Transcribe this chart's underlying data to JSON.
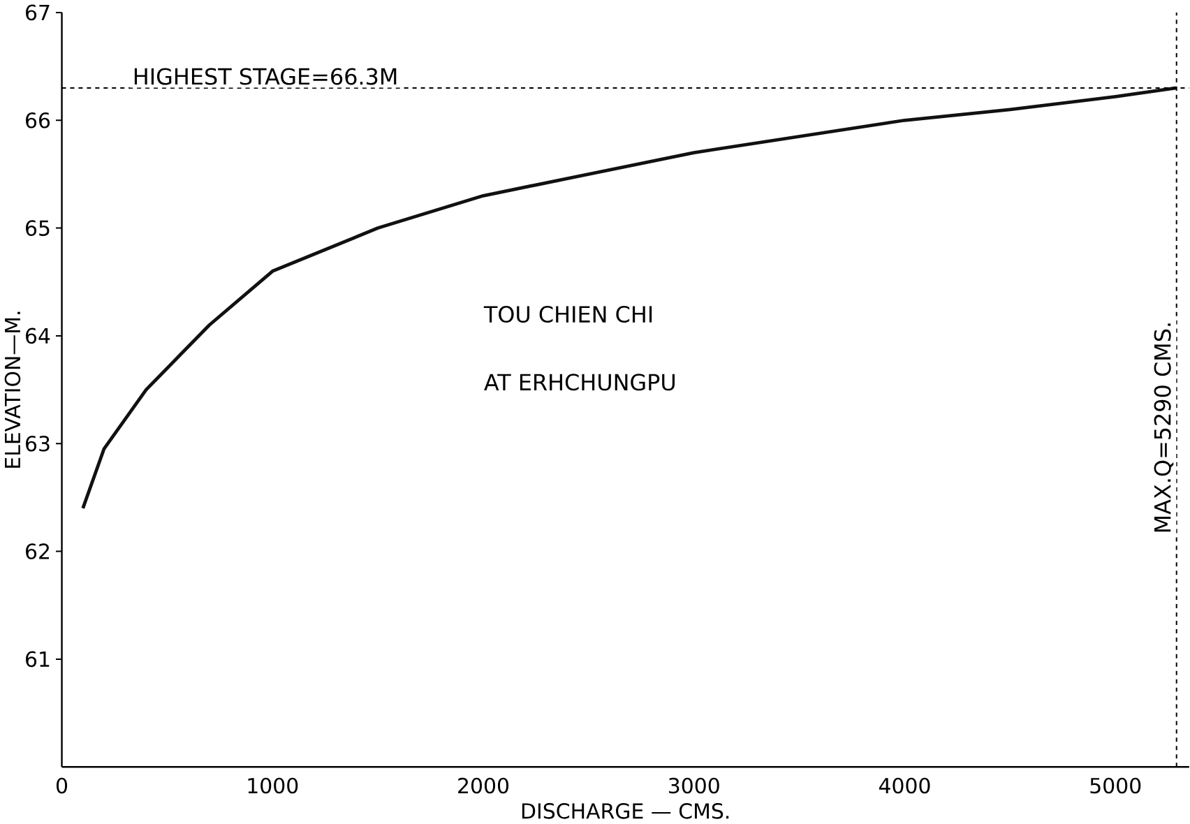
{
  "chart_data": {
    "type": "line",
    "xlabel": "DISCHARGE — CMS.",
    "ylabel": "ELEVATION—M.",
    "x": [
      100,
      200,
      400,
      700,
      1000,
      1500,
      2000,
      2500,
      3000,
      3500,
      4000,
      4500,
      5000,
      5290
    ],
    "series": [
      {
        "color": "#111111",
        "values": [
          62.4,
          62.95,
          63.5,
          64.1,
          64.6,
          65.0,
          65.3,
          65.5,
          65.7,
          65.85,
          66.0,
          66.1,
          66.22,
          66.3
        ]
      }
    ],
    "xlim": [
      0,
      5350
    ],
    "ylim": [
      60,
      67
    ],
    "xticks": [
      0,
      1000,
      2000,
      3000,
      4000,
      5000
    ],
    "yticks": [
      61,
      62,
      63,
      64,
      65,
      66,
      67
    ],
    "grid": false,
    "marker": "none",
    "line_style": "solid",
    "ref_lines": [
      {
        "axis": "y",
        "value": 66.3,
        "label": "HIGHEST STAGE=66.3M",
        "line_style": "dashed"
      },
      {
        "axis": "x",
        "value": 5290,
        "label": "MAX.Q=5290 CMS.",
        "line_style": "dashed"
      }
    ],
    "annotations": [
      "TOU CHIEN CHI",
      "AT ERHCHUNGPU"
    ]
  }
}
